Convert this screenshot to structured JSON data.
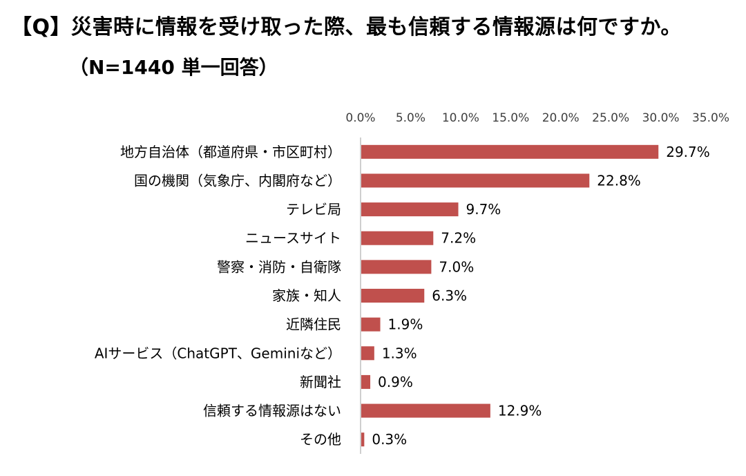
{
  "header": {
    "title": "【Q】災害時に情報を受け取った際、最も信頼する情報源は何ですか。",
    "subtitle": "（N=1440 単一回答）"
  },
  "chart_data": {
    "type": "bar",
    "orientation": "horizontal",
    "xlim": [
      0,
      35
    ],
    "xticks": [
      "0.0%",
      "5.0%",
      "10.0%",
      "15.0%",
      "20.0%",
      "25.0%",
      "30.0%",
      "35.0%"
    ],
    "xtick_position": "top",
    "grid": false,
    "bar_color": "#c0504d",
    "categories": [
      "地方自治体（都道府県・市区町村）",
      "国の機関（気象庁、内閣府など）",
      "テレビ局",
      "ニュースサイト",
      "警察・消防・自衛隊",
      "家族・知人",
      "近隣住民",
      "AIサービス（ChatGPT、Geminiなど）",
      "新聞社",
      "信頼する情報源はない",
      "その他"
    ],
    "values": [
      29.7,
      22.8,
      9.7,
      7.2,
      7.0,
      6.3,
      1.9,
      1.3,
      0.9,
      12.9,
      0.3
    ],
    "value_labels": [
      "29.7%",
      "22.8%",
      "9.7%",
      "7.2%",
      "7.0%",
      "6.3%",
      "1.9%",
      "1.3%",
      "0.9%",
      "12.9%",
      "0.3%"
    ]
  }
}
